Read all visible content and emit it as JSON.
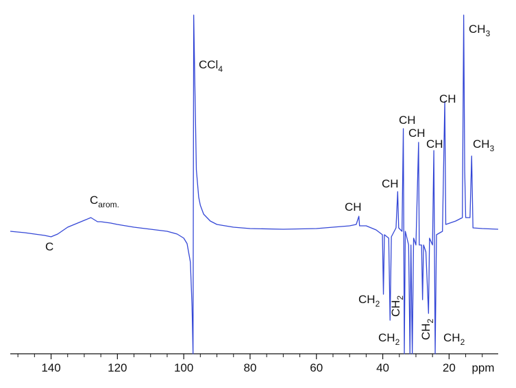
{
  "chart_data": {
    "type": "line",
    "x_label": "ppm",
    "xlim": [
      152.3,
      5.2
    ],
    "xticks": [
      140,
      120,
      100,
      80,
      60,
      40,
      20
    ],
    "xminorticks": [
      150,
      145,
      135,
      130,
      125,
      115,
      110,
      105,
      95,
      90,
      85,
      75,
      70,
      65,
      55,
      50,
      45,
      35,
      30,
      25,
      15,
      10
    ],
    "ylim": [
      -179,
      316
    ],
    "series": [
      {
        "color": "#3346d6",
        "x": [
          152.3,
          148,
          145,
          142,
          140,
          138,
          135,
          132,
          130,
          128,
          126,
          125,
          122,
          120,
          115,
          110,
          105,
          102,
          100,
          99,
          98,
          97.5,
          97.2,
          97.0,
          96.6,
          96.2,
          95.5,
          95,
          94,
          92,
          90,
          85,
          80,
          70,
          60,
          55,
          50,
          48,
          47.2,
          47,
          45,
          42,
          40.1,
          39.8,
          39.5,
          38.2,
          37.8,
          37.4,
          36,
          35.5,
          35.2,
          34.2,
          33.8,
          33.5,
          33.2,
          32.2,
          31.8,
          31.5,
          31.1,
          30.7,
          30,
          29.2,
          29,
          28.3,
          28,
          27.7,
          27,
          26.2,
          25.9,
          25,
          24.6,
          24.2,
          23.8,
          22,
          21.3,
          21,
          18,
          16,
          15.6,
          15.3,
          15,
          13.7,
          13.2,
          12.8,
          10,
          5.2
        ],
        "values": [
          0,
          -2,
          -4,
          -6,
          -8,
          -4,
          6,
          12,
          16,
          20,
          14,
          14,
          12,
          10,
          6,
          3,
          0,
          -4,
          -10,
          -18,
          -45,
          -110,
          -179,
          316,
          200,
          90,
          50,
          38,
          25,
          15,
          10,
          6,
          4,
          3,
          4,
          6,
          8,
          10,
          22,
          8,
          8,
          2,
          -5,
          -92,
          -5,
          -10,
          -130,
          -8,
          5,
          58,
          5,
          0,
          150,
          -179,
          0,
          -20,
          -179,
          -20,
          -179,
          -10,
          -20,
          130,
          -20,
          -20,
          -100,
          -20,
          -30,
          -120,
          -10,
          -20,
          118,
          -179,
          -5,
          0,
          190,
          10,
          15,
          20,
          316,
          90,
          20,
          20,
          110,
          5,
          4,
          3
        ]
      }
    ],
    "annotations": [
      {
        "text": "CCl",
        "sub": "4"
      },
      {
        "text": "C",
        "sub": "arom."
      },
      {
        "text": "C"
      },
      {
        "text": "CH"
      },
      {
        "text": "CH"
      },
      {
        "text": "CH"
      },
      {
        "text": "CH"
      },
      {
        "text": "CH"
      },
      {
        "text": "CH"
      },
      {
        "text": "CH",
        "sub": "3"
      },
      {
        "text": "CH",
        "sub": "3"
      },
      {
        "text": "CH",
        "sub": "2"
      },
      {
        "text": "CH",
        "sub": "2"
      },
      {
        "text": "CH",
        "sub": "2"
      },
      {
        "text": "CH",
        "sub": "2"
      },
      {
        "text": "CH",
        "sub": "2"
      }
    ]
  }
}
